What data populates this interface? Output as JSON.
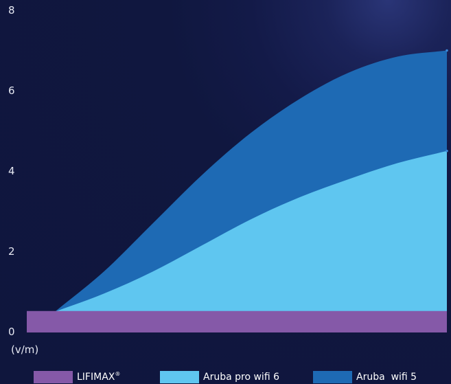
{
  "chart_data": {
    "type": "area",
    "unit_label": "(v/m)",
    "ylim": [
      0,
      8
    ],
    "y_ticks": [
      "0",
      "2",
      "4",
      "6",
      "8"
    ],
    "grid": false,
    "legend_position": "bottom",
    "series": [
      {
        "name": "LIFIMAX",
        "name_superscript": "®",
        "color": "#8559a8",
        "values": [
          0.5,
          0.5,
          0.5,
          0.5,
          0.5,
          0.5,
          0.5,
          0.5,
          0.5
        ]
      },
      {
        "name": "Aruba pro wifi 6",
        "color": "#5fc6f0",
        "values": [
          0.5,
          0.95,
          1.5,
          2.15,
          2.8,
          3.35,
          3.8,
          4.2,
          4.5
        ]
      },
      {
        "name": "Aruba  wifi 5",
        "color": "#1e6ab4",
        "values": [
          0.5,
          1.5,
          2.7,
          3.9,
          4.95,
          5.8,
          6.45,
          6.85,
          7.0
        ]
      }
    ]
  },
  "legend": {
    "items": [
      {
        "label": "LIFIMAX",
        "sup": "®",
        "color": "#8559a8"
      },
      {
        "label": "Aruba pro wifi 6",
        "sup": "",
        "color": "#5fc6f0"
      },
      {
        "label": "Aruba  wifi 5",
        "sup": "",
        "color": "#1e6ab4"
      }
    ]
  }
}
